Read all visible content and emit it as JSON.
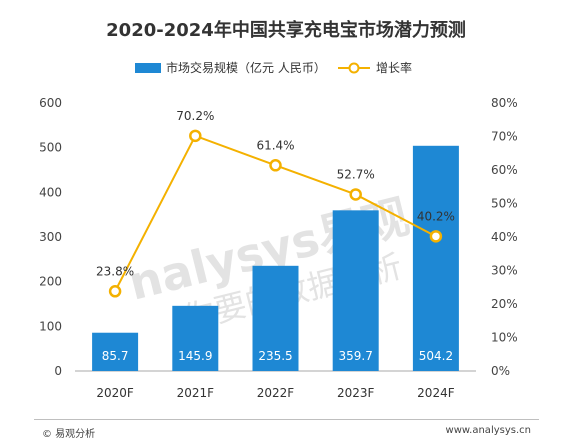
{
  "chart_data": {
    "type": "bar+line",
    "title": "2020-2024年中国共享充电宝市场潜力预测",
    "categories": [
      "2020F",
      "2021F",
      "2022F",
      "2023F",
      "2024F"
    ],
    "series": [
      {
        "name": "市场交易规模（亿元 人民币）",
        "type": "bar",
        "axis": "left",
        "color": "#1e88d4",
        "values": [
          85.7,
          145.9,
          235.5,
          359.7,
          504.2
        ]
      },
      {
        "name": "增长率",
        "type": "line",
        "axis": "right",
        "color": "#f4b100",
        "values": [
          23.8,
          70.2,
          61.4,
          52.7,
          40.2
        ]
      }
    ],
    "y_left": {
      "min": 0,
      "max": 600,
      "ticks": [
        0,
        100,
        200,
        300,
        400,
        500,
        600
      ]
    },
    "y_right": {
      "min": 0,
      "max": 80,
      "ticks": [
        "0%",
        "10%",
        "20%",
        "30%",
        "40%",
        "50%",
        "60%",
        "70%",
        "80%"
      ]
    },
    "line_labels": [
      "23.8%",
      "70.2%",
      "61.4%",
      "52.7%",
      "40.2%"
    ],
    "bar_labels": [
      "85.7",
      "145.9",
      "235.5",
      "359.7",
      "504.2"
    ],
    "legend_position": "top",
    "grid": false
  },
  "watermark": {
    "brand": "nalysys易观",
    "slogan": "你要的数据分析"
  },
  "footer": {
    "left": "© 易观分析",
    "right": "www.analysys.cn"
  }
}
